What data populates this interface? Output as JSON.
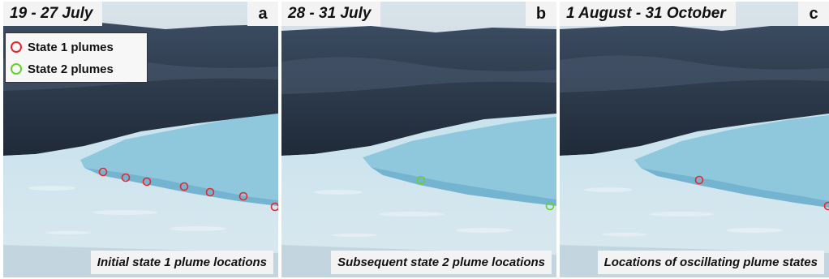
{
  "panels": [
    {
      "date_range": "19 - 27 July",
      "letter": "a",
      "caption": "Initial state 1 plume locations",
      "markers": [
        {
          "state": 1
        },
        {
          "state": 1
        },
        {
          "state": 1
        },
        {
          "state": 1
        },
        {
          "state": 1
        },
        {
          "state": 1
        },
        {
          "state": 1
        }
      ]
    },
    {
      "date_range": "28 - 31 July",
      "letter": "b",
      "caption": "Subsequent state 2 plume locations",
      "markers": [
        {
          "state": 2
        },
        {
          "state": 2
        }
      ]
    },
    {
      "date_range": "1 August - 31 October",
      "letter": "c",
      "caption": "Locations of oscillating plume states",
      "markers": [
        {
          "state": 1
        },
        {
          "state": 1
        }
      ]
    }
  ],
  "legend": {
    "items": [
      {
        "label": "State 1 plumes",
        "color": "#e8262a"
      },
      {
        "label": "State 2 plumes",
        "color": "#66d12a"
      }
    ]
  },
  "colors": {
    "state_1": "#e8262a",
    "state_2": "#66d12a",
    "sky": "#c9d6df",
    "mountain": "#2f3e52",
    "glacier": "#a9d6e6",
    "ice_melange": "#cfe4ee"
  }
}
